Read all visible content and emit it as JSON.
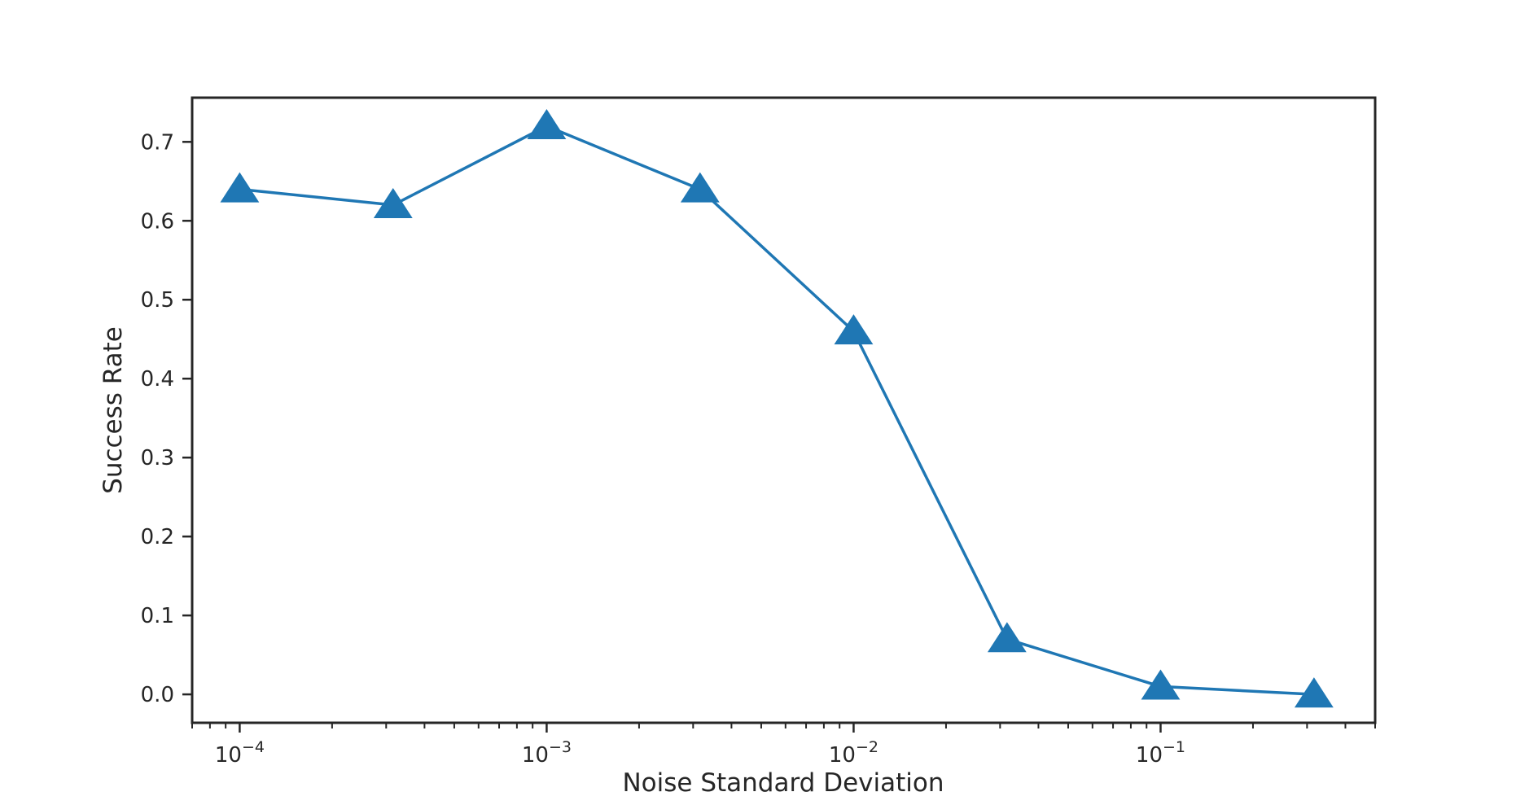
{
  "chart_data": {
    "type": "line",
    "title": "",
    "xlabel": "Noise Standard Deviation",
    "ylabel": "Success Rate",
    "x_scale": "log",
    "xlim": [
      7e-05,
      0.5
    ],
    "ylim": [
      -0.036,
      0.756
    ],
    "grid": false,
    "legend": "none",
    "x_ticks": [
      {
        "base": "10",
        "exp": "−4",
        "value": 0.0001
      },
      {
        "base": "10",
        "exp": "−3",
        "value": 0.001
      },
      {
        "base": "10",
        "exp": "−2",
        "value": 0.01
      },
      {
        "base": "10",
        "exp": "−1",
        "value": 0.1
      }
    ],
    "y_ticks": [
      "0.0",
      "0.1",
      "0.2",
      "0.3",
      "0.4",
      "0.5",
      "0.6",
      "0.7"
    ],
    "colors": {
      "series": "#1f77b4",
      "axis": "#262626"
    },
    "series": [
      {
        "marker": "triangle",
        "x": [
          0.0001,
          0.000316,
          0.001,
          0.00316,
          0.01,
          0.0316,
          0.1,
          0.316
        ],
        "y": [
          0.64,
          0.62,
          0.72,
          0.64,
          0.46,
          0.07,
          0.01,
          0.0
        ]
      }
    ]
  }
}
